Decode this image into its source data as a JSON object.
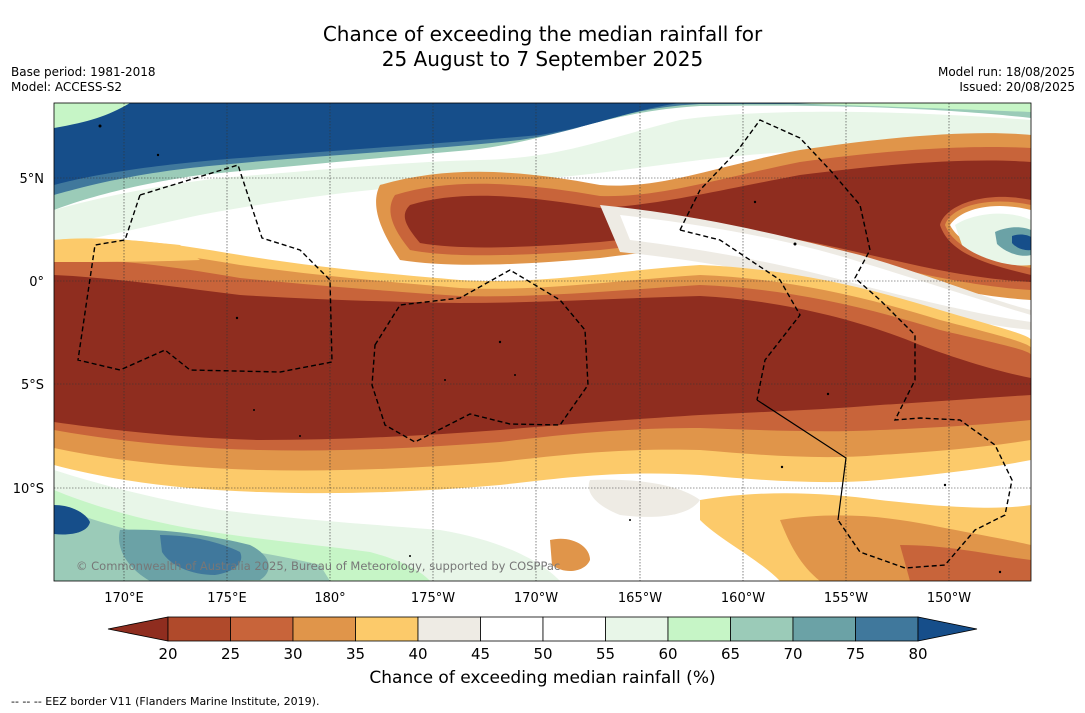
{
  "header": {
    "title_line1": "Chance of exceeding the median rainfall for",
    "title_line2": "25 August to 7 September 2025",
    "base_period": "Base period: 1981-2018",
    "model": "Model: ACCESS-S2",
    "model_run": "Model run: 18/08/2025",
    "issued": "Issued: 20/08/2025"
  },
  "map": {
    "lat_labels": [
      "5°N",
      "0°",
      "5°S",
      "10°S"
    ],
    "lon_labels": [
      "170°E",
      "175°E",
      "180°",
      "175°W",
      "170°W",
      "165°W",
      "160°W",
      "155°W",
      "150°W"
    ],
    "copyright": "© Commonwealth of Australia 2025, Bureau of Meteorology, supported by COSPPac"
  },
  "colorbar": {
    "ticks": [
      "20",
      "25",
      "30",
      "35",
      "40",
      "45",
      "50",
      "55",
      "60",
      "65",
      "70",
      "75",
      "80"
    ],
    "colors": [
      "#8f2d1f",
      "#b04a2b",
      "#c8643a",
      "#e0954a",
      "#fcca6a",
      "#eeebe4",
      "#ffffff",
      "#ffffff",
      "#e8f6e8",
      "#c6f5c6",
      "#9bcbb8",
      "#6ba2a6",
      "#40789c",
      "#164e8a"
    ],
    "label": "Chance of exceeding median rainfall (%)"
  },
  "footer": {
    "legend_text": "--  --  -- EEZ border V11 (Flanders Marine Institute, 2019)."
  }
}
